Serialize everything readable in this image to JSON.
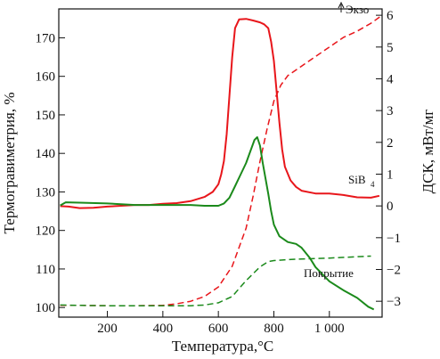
{
  "chart_data": {
    "type": "line",
    "title": "",
    "xlabel": "Температура,°С",
    "ylabel_left": "Термогравиметрия, %",
    "ylabel_right": "ДСК, мВт/мг",
    "xlim": [
      25,
      1190
    ],
    "ylim_left": [
      97.5,
      177.5
    ],
    "ylim_right": [
      -3.5,
      6.2
    ],
    "x_ticks": [
      200,
      400,
      600,
      800,
      1000
    ],
    "x_tick_labels": [
      "200",
      "400",
      "600",
      "800",
      "1 000"
    ],
    "y_left_ticks": [
      100,
      110,
      120,
      130,
      140,
      150,
      160,
      170
    ],
    "y_right_ticks": [
      -3,
      -2,
      -1,
      0,
      1,
      2,
      3,
      4,
      5,
      6
    ],
    "y_right_tick_labels": [
      "−3",
      "−2",
      "−1",
      "0",
      "1",
      "2",
      "3",
      "4",
      "5",
      "6"
    ],
    "grid": false,
    "annotations": {
      "exo": "Экзо",
      "sib": "SiB",
      "sib_sub": "4",
      "coating": "Покрытие"
    },
    "series": [
      {
        "name": "SiB4 TG",
        "axis": "left",
        "color": "#e8161b",
        "dash": "solid",
        "x": [
          30,
          60,
          100,
          150,
          200,
          250,
          300,
          350,
          400,
          450,
          500,
          550,
          580,
          600,
          610,
          620,
          630,
          640,
          650,
          660,
          675,
          700,
          725,
          750,
          765,
          780,
          790,
          800,
          810,
          820,
          830,
          840,
          860,
          880,
          900,
          950,
          1000,
          1050,
          1100,
          1150,
          1180
        ],
        "values": [
          126.3,
          126.2,
          125.8,
          125.9,
          126.2,
          126.4,
          126.6,
          126.6,
          126.9,
          127.1,
          127.6,
          128.7,
          130.0,
          132.0,
          134.5,
          138.0,
          145.0,
          155.0,
          165.0,
          172.5,
          174.8,
          174.9,
          174.5,
          174.0,
          173.5,
          172.5,
          169.0,
          164.0,
          156.0,
          148.0,
          141.0,
          136.5,
          133.0,
          131.3,
          130.3,
          129.6,
          129.6,
          129.2,
          128.6,
          128.5,
          129.0
        ]
      },
      {
        "name": "SiB4 DSC",
        "axis": "right",
        "color": "#e8161b",
        "dash": "dashed",
        "x": [
          30,
          100,
          200,
          300,
          400,
          450,
          500,
          550,
          600,
          650,
          700,
          725,
          750,
          775,
          800,
          825,
          850,
          900,
          950,
          1000,
          1050,
          1100,
          1150,
          1190
        ],
        "values": [
          -3.13,
          -3.13,
          -3.14,
          -3.14,
          -3.13,
          -3.08,
          -3.0,
          -2.85,
          -2.55,
          -1.9,
          -0.7,
          0.3,
          1.4,
          2.4,
          3.3,
          3.8,
          4.1,
          4.4,
          4.7,
          5.0,
          5.3,
          5.5,
          5.75,
          6.0
        ]
      },
      {
        "name": "Покрытие TG",
        "axis": "left",
        "color": "#1b8a1b",
        "dash": "solid",
        "x": [
          30,
          50,
          100,
          200,
          300,
          400,
          500,
          550,
          600,
          620,
          640,
          660,
          680,
          700,
          715,
          730,
          740,
          750,
          760,
          770,
          780,
          790,
          800,
          820,
          850,
          880,
          900,
          930,
          950,
          1000,
          1050,
          1100,
          1140,
          1160
        ],
        "values": [
          126.5,
          127.3,
          127.2,
          127.0,
          126.6,
          126.6,
          126.6,
          126.4,
          126.4,
          127.0,
          128.5,
          131.5,
          134.5,
          137.5,
          140.5,
          143.5,
          144.2,
          142.0,
          137.5,
          133.5,
          129.5,
          125.0,
          121.5,
          118.5,
          117.0,
          116.5,
          115.5,
          112.8,
          110.5,
          106.8,
          104.5,
          102.5,
          100.2,
          99.5
        ]
      },
      {
        "name": "Покрытие DSC",
        "axis": "right",
        "color": "#1b8a1b",
        "dash": "dashed",
        "x": [
          30,
          100,
          200,
          300,
          400,
          500,
          550,
          600,
          650,
          700,
          750,
          780,
          800,
          850,
          900,
          1000,
          1100,
          1150
        ],
        "values": [
          -3.12,
          -3.13,
          -3.14,
          -3.14,
          -3.14,
          -3.14,
          -3.12,
          -3.05,
          -2.85,
          -2.35,
          -1.92,
          -1.75,
          -1.72,
          -1.69,
          -1.67,
          -1.64,
          -1.6,
          -1.58
        ]
      }
    ]
  }
}
